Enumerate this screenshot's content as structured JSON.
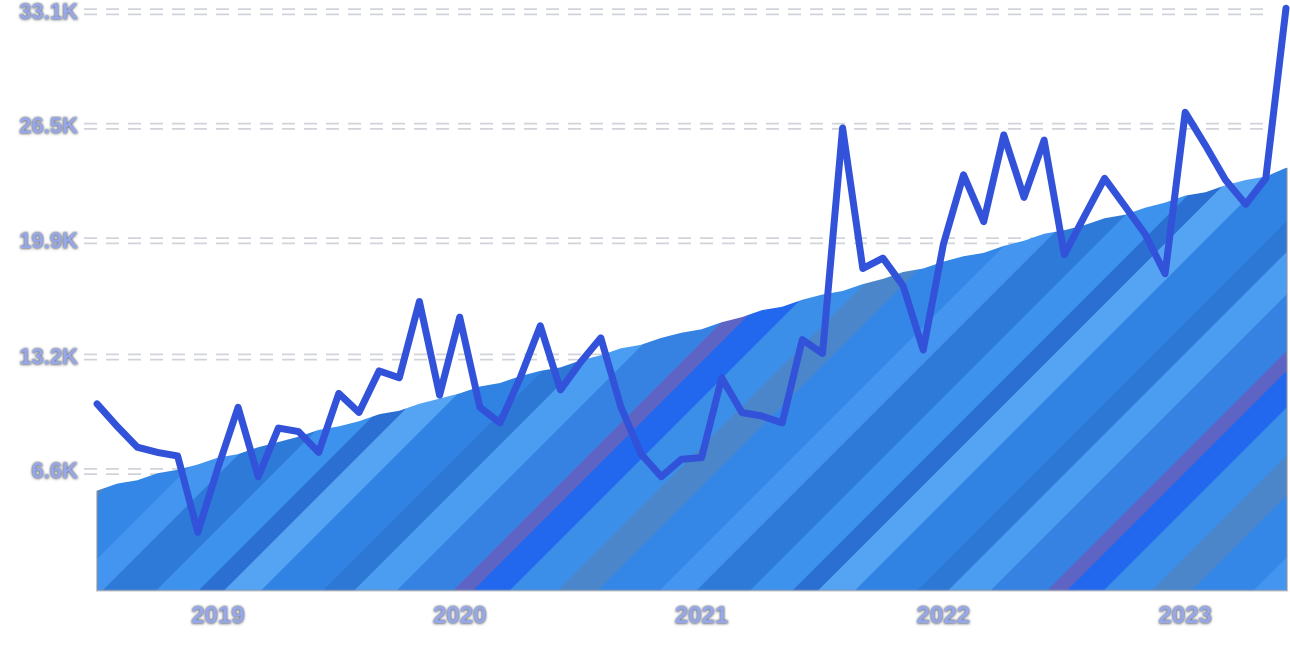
{
  "chart_data": {
    "type": "line",
    "title": "",
    "xlabel": "",
    "ylabel": "",
    "x_axis": {
      "unit": "months",
      "start": "Jul 2018",
      "end": "Jun 2023",
      "tick_labels": [
        "2019",
        "2020",
        "2021",
        "2022",
        "2023"
      ],
      "tick_month_index": [
        6,
        18,
        30,
        42,
        54
      ]
    },
    "y_axis": {
      "tick_labels": [
        "33.1K",
        "26.5K",
        "19.9K",
        "13.2K",
        "6.6K"
      ],
      "tick_values": [
        33.1,
        26.5,
        19.9,
        13.2,
        6.6
      ],
      "range_k": [
        0,
        33.5
      ],
      "grid": "horizontal-dashed-white"
    },
    "legend": "none",
    "series": [
      {
        "name": "volatile-monthly-line",
        "type": "line",
        "color": "#3152d9",
        "stroke_width": 7,
        "values_k": [
          10.5,
          9.2,
          8.0,
          7.7,
          7.5,
          3.1,
          6.8,
          10.3,
          6.3,
          9.1,
          8.9,
          7.7,
          11.1,
          10.0,
          12.4,
          12.0,
          16.4,
          11.0,
          15.5,
          10.3,
          9.4,
          12.0,
          15.0,
          11.3,
          12.9,
          14.3,
          10.3,
          7.6,
          6.3,
          7.3,
          7.4,
          12.0,
          10.0,
          9.8,
          9.4,
          14.2,
          13.4,
          26.4,
          18.3,
          18.9,
          17.3,
          13.6,
          19.7,
          23.7,
          21.0,
          26.0,
          22.4,
          25.7,
          19.1,
          21.3,
          23.5,
          21.9,
          20.3,
          18.0,
          27.3,
          25.4,
          23.4,
          22.0,
          23.5,
          33.3
        ]
      },
      {
        "name": "rising-striped-area",
        "type": "area",
        "base_color": "#3487e7",
        "values_k": [
          5.5,
          5.9,
          6.1,
          6.5,
          6.7,
          7.0,
          7.4,
          7.6,
          8.0,
          8.3,
          8.6,
          9.0,
          9.2,
          9.5,
          9.9,
          10.1,
          10.5,
          10.8,
          11.1,
          11.5,
          11.7,
          12.1,
          12.4,
          12.6,
          13.0,
          13.3,
          13.7,
          13.9,
          14.3,
          14.6,
          14.8,
          15.2,
          15.5,
          15.9,
          16.1,
          16.5,
          16.8,
          17.0,
          17.4,
          17.7,
          18.1,
          18.3,
          18.7,
          19.0,
          19.2,
          19.6,
          19.9,
          20.3,
          20.5,
          20.8,
          21.2,
          21.4,
          21.8,
          22.1,
          22.5,
          22.7,
          23.1,
          23.4,
          23.6,
          24.1
        ]
      }
    ],
    "area_stripes": [
      {
        "color": "#3487e7",
        "width": 44
      },
      {
        "color": "#4495ef",
        "width": 26
      },
      {
        "color": "#2e7ad8",
        "width": 38
      },
      {
        "color": "#3d92ed",
        "width": 30
      },
      {
        "color": "#2a6fd1",
        "width": 18
      },
      {
        "color": "#55a3f3",
        "width": 26
      },
      {
        "color": "#3083e2",
        "width": 44
      },
      {
        "color": "#2d77d5",
        "width": 22
      },
      {
        "color": "#4a9df1",
        "width": 30
      },
      {
        "color": "#3582e3",
        "width": 40
      },
      {
        "color": "#5e64c4",
        "width": 14
      },
      {
        "color": "#2268ef",
        "width": 26
      },
      {
        "color": "#3b8fe9",
        "width": 34
      },
      {
        "color": "#4a86c9",
        "width": 28
      }
    ],
    "colors": {
      "background": "#ffffff",
      "gridline": "#ffffff",
      "gridline_halo": "#c8ccd4",
      "axis_label": "#96a8ea",
      "axis_label_halo": "#6f747e",
      "plot_edge": "#8f949e"
    }
  }
}
